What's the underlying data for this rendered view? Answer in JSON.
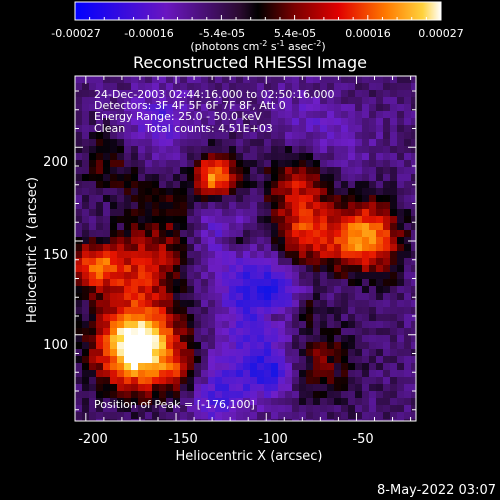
{
  "colorbar": {
    "tick_labels": [
      "-0.00027",
      "-0.00016",
      "-5.4e-05",
      "5.4e-05",
      "0.00016",
      "0.00027"
    ],
    "unit_label_main": "(photons cm",
    "unit_label_exp1": "-2",
    "unit_label_mid1": " s",
    "unit_label_exp2": "-1",
    "unit_label_mid2": " asec",
    "unit_label_exp3": "-2",
    "unit_label_end": ")"
  },
  "image": {
    "title": "Reconstructed RHESSI Image",
    "time_range": "24-Dec-2003 02:44:16.000 to 02:50:16.000",
    "detectors": "Detectors: 3F 4F 5F 6F 7F 8F, Att 0",
    "energy_range": "Energy Range: 25.0 - 50.0 keV",
    "clean_label": "Clean",
    "total_counts": "Total counts: 4.51E+03",
    "peak_position": "Position of Peak = [-176,100]"
  },
  "axes": {
    "x_label": "Heliocentric X (arcsec)",
    "y_label": "Heliocentric Y (arcsec)",
    "x_ticks": [
      "-200",
      "-150",
      "-100",
      "-50"
    ],
    "y_ticks": [
      "200",
      "150",
      "100"
    ],
    "x_range": [
      -206,
      -17
    ],
    "y_range": [
      54,
      238
    ]
  },
  "footer": {
    "date": "8-May-2022 03:07"
  },
  "colors": {
    "background": "#000000",
    "foreground": "#ffffff"
  }
}
